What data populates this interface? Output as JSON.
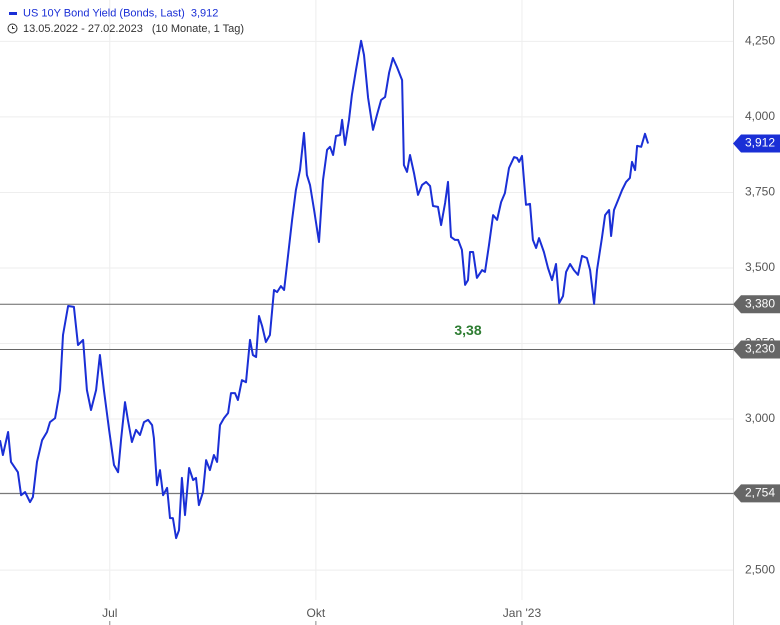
{
  "chart_data": {
    "type": "line",
    "subtitle": "13.05.2022 - 27.02.2023",
    "period": "(10 Monate, 1 Tag)",
    "annotation": "3,38",
    "last_value_label": "3,912",
    "x": [
      0,
      1.3,
      3.6,
      4.9,
      8.0,
      9.4,
      11.2,
      13.4,
      14.7,
      16.5,
      18.8,
      21.0,
      22.3,
      24.6,
      26.8,
      28.1,
      30.4,
      33.0,
      34.8,
      37.1,
      38.8,
      40.6,
      42.9,
      44.6,
      46.4,
      48.7,
      50.9,
      52.7,
      54.0,
      55.8,
      57.1,
      58.9,
      60.7,
      62.5,
      64.3,
      66.1,
      67.9,
      68.7,
      70.1,
      71.4,
      72.8,
      74.6,
      75.9,
      77.2,
      78.6,
      79.9,
      81.2,
      82.6,
      84.4,
      86.2,
      87.5,
      88.8,
      90.6,
      92.0,
      93.7,
      95.5,
      96.9,
      98.2,
      100.0,
      101.8,
      103.1,
      104.9,
      106.2,
      108.0,
      109.8,
      111.6,
      112.9,
      114.3,
      115.6,
      117.0,
      118.7,
      120.5,
      122.3,
      123.7,
      125.4,
      126.8,
      128.6,
      130.4,
      132.1,
      133.9,
      135.7,
      137.0,
      138.4,
      140.2,
      142.4,
      144.2,
      146.0,
      147.3,
      148.7,
      150.0,
      151.8,
      152.7,
      154.0,
      155.8,
      157.1,
      158.9,
      161.2,
      162.5,
      164.3,
      166.5,
      168.3,
      170.1,
      171.9,
      173.7,
      175.4,
      177.2,
      179.5,
      180.3,
      181.7,
      183.0,
      184.8,
      186.6,
      188.4,
      190.2,
      192.0,
      193.3,
      195.5,
      196.9,
      198.7,
      200.0,
      201.3,
      203.1,
      204.5,
      206.2,
      207.6,
      208.9,
      209.8,
      211.2,
      212.9,
      215.2,
      216.5,
      218.3,
      220.1,
      221.9,
      223.7,
      225.4,
      227.2,
      229.5,
      230.8,
      231.7,
      233.0,
      234.8,
      236.6,
      237.9,
      239.3,
      240.6,
      242.8,
      244.6,
      246.4,
      248.2,
      249.6,
      251.3,
      252.7,
      254.5,
      256.2,
      258.0,
      259.8,
      262.0,
      263.4,
      265.2,
      266.5,
      268.7,
      270.1,
      271.9,
      272.8,
      274.1,
      275.9,
      277.7,
      279.5,
      281.2,
      282.1,
      283.5,
      284.4,
      286.2,
      287.9,
      289.3
    ],
    "series": [
      {
        "name": "US 10Y Bond Yield (Bonds, Last)",
        "color": "#1a2fd6",
        "values": [
          2.93,
          2.881,
          2.957,
          2.858,
          2.824,
          2.748,
          2.758,
          2.725,
          2.742,
          2.858,
          2.93,
          2.957,
          2.99,
          3.003,
          3.096,
          3.278,
          3.374,
          3.371,
          3.245,
          3.262,
          3.096,
          3.03,
          3.096,
          3.212,
          3.096,
          2.964,
          2.848,
          2.824,
          2.93,
          3.056,
          2.997,
          2.924,
          2.964,
          2.947,
          2.99,
          2.997,
          2.98,
          2.937,
          2.781,
          2.831,
          2.748,
          2.772,
          2.672,
          2.672,
          2.606,
          2.632,
          2.805,
          2.682,
          2.838,
          2.798,
          2.805,
          2.715,
          2.758,
          2.864,
          2.831,
          2.881,
          2.858,
          2.98,
          3.003,
          3.02,
          3.086,
          3.086,
          3.063,
          3.129,
          3.122,
          3.262,
          3.212,
          3.205,
          3.341,
          3.308,
          3.255,
          3.278,
          3.427,
          3.42,
          3.44,
          3.427,
          3.543,
          3.659,
          3.758,
          3.824,
          3.947,
          3.808,
          3.775,
          3.692,
          3.586,
          3.791,
          3.891,
          3.901,
          3.874,
          3.937,
          3.94,
          3.99,
          3.907,
          3.99,
          4.073,
          4.156,
          4.252,
          4.205,
          4.063,
          3.957,
          4.007,
          4.056,
          4.066,
          4.146,
          4.195,
          4.165,
          4.122,
          3.841,
          3.818,
          3.874,
          3.814,
          3.742,
          3.775,
          3.785,
          3.771,
          3.705,
          3.702,
          3.642,
          3.715,
          3.785,
          3.603,
          3.593,
          3.593,
          3.56,
          3.444,
          3.46,
          3.553,
          3.553,
          3.467,
          3.493,
          3.487,
          3.576,
          3.675,
          3.659,
          3.718,
          3.748,
          3.831,
          3.867,
          3.864,
          3.851,
          3.871,
          3.709,
          3.712,
          3.593,
          3.566,
          3.599,
          3.553,
          3.5,
          3.46,
          3.513,
          3.384,
          3.407,
          3.487,
          3.513,
          3.493,
          3.477,
          3.54,
          3.533,
          3.493,
          3.381,
          3.493,
          3.599,
          3.675,
          3.692,
          3.606,
          3.692,
          3.725,
          3.758,
          3.785,
          3.798,
          3.851,
          3.824,
          3.904,
          3.901,
          3.944,
          3.912
        ]
      }
    ],
    "xlim": [
      0,
      327.2
    ],
    "xticks": [
      {
        "value": 49,
        "label": "Jul"
      },
      {
        "value": 141,
        "label": "Okt"
      },
      {
        "value": 233,
        "label": "Jan '23"
      }
    ],
    "ylim": [
      2.401,
      4.387
    ],
    "yticks": [
      {
        "value": 2.5,
        "label": "2,500"
      },
      {
        "value": 2.75,
        "label": "2,750"
      },
      {
        "value": 3.0,
        "label": "3,000"
      },
      {
        "value": 3.25,
        "label": "3,250"
      },
      {
        "value": 3.5,
        "label": "3,500"
      },
      {
        "value": 3.75,
        "label": "3,750"
      },
      {
        "value": 4.0,
        "label": "4,000"
      },
      {
        "value": 4.25,
        "label": "4,250"
      }
    ],
    "hlines": [
      {
        "value": 3.38,
        "label": "3,380"
      },
      {
        "value": 3.23,
        "label": "3,230"
      },
      {
        "value": 2.754,
        "label": "2,754"
      }
    ],
    "hline_color": "#666666",
    "grid": true
  }
}
